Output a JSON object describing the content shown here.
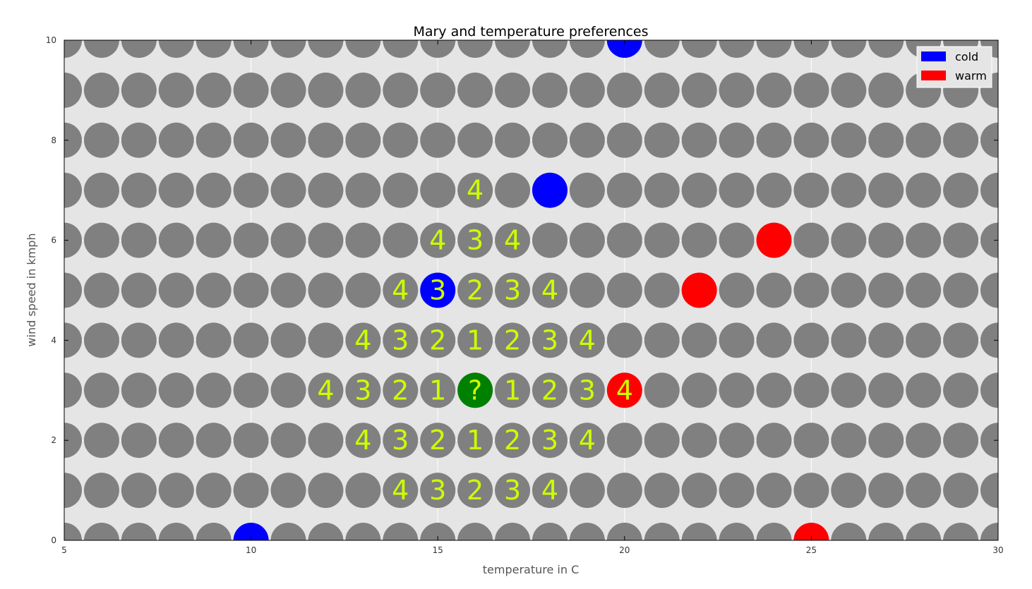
{
  "chart_data": {
    "type": "scatter",
    "title": "Mary and temperature preferences",
    "xlabel": "temperature in C",
    "ylabel": "wind speed in kmph",
    "xlim": [
      5,
      30
    ],
    "ylim": [
      0,
      10
    ],
    "x_ticks": [
      "5",
      "10",
      "15",
      "20",
      "25",
      "30"
    ],
    "y_ticks": [
      "0",
      "2",
      "4",
      "6",
      "8",
      "10"
    ],
    "grid": true,
    "background_color": "#e5e5e5",
    "legend_placement": "top-right",
    "legend": [
      {
        "label": "cold",
        "color": "#0000ff"
      },
      {
        "label": "warm",
        "color": "#ff0000"
      }
    ],
    "background_grid_points": {
      "color": "#808080",
      "x_range": [
        5,
        30
      ],
      "y_range": [
        0,
        10
      ],
      "step": 1
    },
    "series": [
      {
        "name": "cold",
        "color": "#0000ff",
        "points": [
          [
            10,
            0
          ],
          [
            15,
            5
          ],
          [
            18,
            7
          ],
          [
            20,
            10
          ]
        ]
      },
      {
        "name": "warm",
        "color": "#ff0000",
        "points": [
          [
            20,
            3
          ],
          [
            22,
            5
          ],
          [
            24,
            6
          ],
          [
            25,
            0
          ]
        ]
      }
    ],
    "query_point": {
      "x": 16,
      "y": 3,
      "color": "#008000",
      "label": "?"
    },
    "distance_labels": [
      {
        "x": 16,
        "y": 7,
        "label": "4"
      },
      {
        "x": 15,
        "y": 6,
        "label": "4"
      },
      {
        "x": 16,
        "y": 6,
        "label": "3"
      },
      {
        "x": 17,
        "y": 6,
        "label": "4"
      },
      {
        "x": 14,
        "y": 5,
        "label": "4"
      },
      {
        "x": 15,
        "y": 5,
        "label": "3"
      },
      {
        "x": 16,
        "y": 5,
        "label": "2"
      },
      {
        "x": 17,
        "y": 5,
        "label": "3"
      },
      {
        "x": 18,
        "y": 5,
        "label": "4"
      },
      {
        "x": 13,
        "y": 4,
        "label": "4"
      },
      {
        "x": 14,
        "y": 4,
        "label": "3"
      },
      {
        "x": 15,
        "y": 4,
        "label": "2"
      },
      {
        "x": 16,
        "y": 4,
        "label": "1"
      },
      {
        "x": 17,
        "y": 4,
        "label": "2"
      },
      {
        "x": 18,
        "y": 4,
        "label": "3"
      },
      {
        "x": 19,
        "y": 4,
        "label": "4"
      },
      {
        "x": 12,
        "y": 3,
        "label": "4"
      },
      {
        "x": 13,
        "y": 3,
        "label": "3"
      },
      {
        "x": 14,
        "y": 3,
        "label": "2"
      },
      {
        "x": 15,
        "y": 3,
        "label": "1"
      },
      {
        "x": 17,
        "y": 3,
        "label": "1"
      },
      {
        "x": 18,
        "y": 3,
        "label": "2"
      },
      {
        "x": 19,
        "y": 3,
        "label": "3"
      },
      {
        "x": 20,
        "y": 3,
        "label": "4"
      },
      {
        "x": 13,
        "y": 2,
        "label": "4"
      },
      {
        "x": 14,
        "y": 2,
        "label": "3"
      },
      {
        "x": 15,
        "y": 2,
        "label": "2"
      },
      {
        "x": 16,
        "y": 2,
        "label": "1"
      },
      {
        "x": 17,
        "y": 2,
        "label": "2"
      },
      {
        "x": 18,
        "y": 2,
        "label": "3"
      },
      {
        "x": 19,
        "y": 2,
        "label": "4"
      },
      {
        "x": 14,
        "y": 1,
        "label": "4"
      },
      {
        "x": 15,
        "y": 1,
        "label": "3"
      },
      {
        "x": 16,
        "y": 1,
        "label": "2"
      },
      {
        "x": 17,
        "y": 1,
        "label": "3"
      },
      {
        "x": 18,
        "y": 1,
        "label": "4"
      }
    ]
  }
}
